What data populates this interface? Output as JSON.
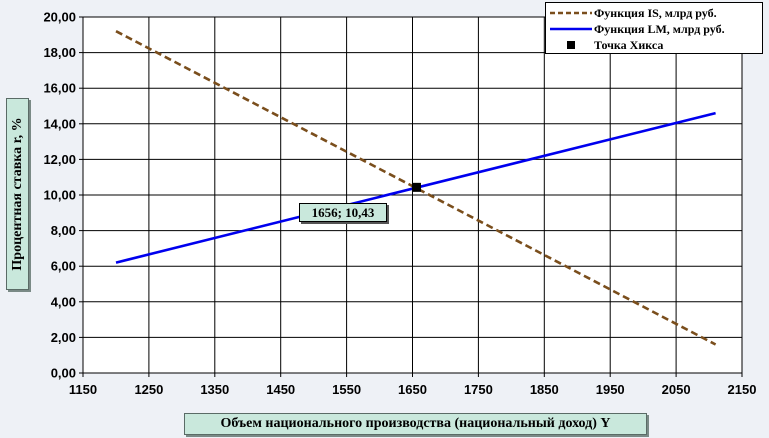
{
  "chart_data": {
    "type": "line",
    "series": [
      {
        "name": "Функция IS, млрд руб.",
        "style": "dashed",
        "color": "#7a4e1c",
        "points": [
          [
            1200,
            19.2
          ],
          [
            2110,
            1.6
          ]
        ]
      },
      {
        "name": "Функция LM, млрд руб.",
        "style": "solid",
        "color": "#0000ee",
        "points": [
          [
            1200,
            6.2
          ],
          [
            2110,
            14.6
          ]
        ]
      }
    ],
    "marker": {
      "name": "Точка Хикса",
      "x": 1656,
      "y": 10.43,
      "label": "1656; 10,43",
      "color": "#000000"
    },
    "xlabel": "Объем  национального  производства (национальный доход)  Y",
    "ylabel": "Процентная  ставка  r, %",
    "xlim": [
      1150,
      2150
    ],
    "ylim": [
      0,
      20
    ],
    "xticks": [
      "1150",
      "1250",
      "1350",
      "1450",
      "1550",
      "1650",
      "1750",
      "1850",
      "1950",
      "2050",
      "2150"
    ],
    "yticks": [
      "0,00",
      "2,00",
      "4,00",
      "6,00",
      "8,00",
      "10,00",
      "12,00",
      "14,00",
      "16,00",
      "18,00",
      "20,00"
    ],
    "grid": true,
    "legend_position": "top-right"
  }
}
